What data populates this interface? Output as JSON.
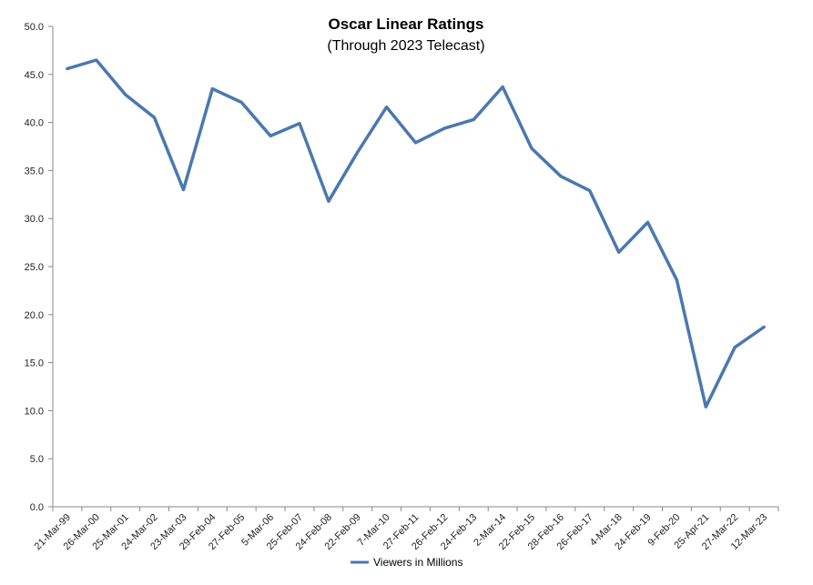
{
  "chart_data": {
    "type": "line",
    "title": "Oscar Linear Ratings",
    "subtitle": "(Through 2023 Telecast)",
    "xlabel": "",
    "ylabel": "",
    "ylim": [
      0,
      50
    ],
    "y_ticks": [
      "0.0",
      "5.0",
      "10.0",
      "15.0",
      "20.0",
      "25.0",
      "30.0",
      "35.0",
      "40.0",
      "45.0",
      "50.0"
    ],
    "grid": false,
    "legend_position": "bottom-center",
    "categories": [
      "21-Mar-99",
      "26-Mar-00",
      "25-Mar-01",
      "24-Mar-02",
      "23-Mar-03",
      "29-Feb-04",
      "27-Feb-05",
      "5-Mar-06",
      "25-Feb-07",
      "24-Feb-08",
      "22-Feb-09",
      "7-Mar-10",
      "27-Feb-11",
      "26-Feb-12",
      "24-Feb-13",
      "2-Mar-14",
      "22-Feb-15",
      "28-Feb-16",
      "26-Feb-17",
      "4-Mar-18",
      "24-Feb-19",
      "9-Feb-20",
      "25-Apr-21",
      "27-Mar-22",
      "12-Mar-23"
    ],
    "series": [
      {
        "name": "Viewers in Millions",
        "color": "#4a78b0",
        "values": [
          45.6,
          46.5,
          42.9,
          40.5,
          33.0,
          43.5,
          42.1,
          38.6,
          39.9,
          31.8,
          36.9,
          41.6,
          37.9,
          39.4,
          40.3,
          43.7,
          37.3,
          34.4,
          32.9,
          26.5,
          29.6,
          23.6,
          10.4,
          16.6,
          18.7
        ]
      }
    ]
  }
}
